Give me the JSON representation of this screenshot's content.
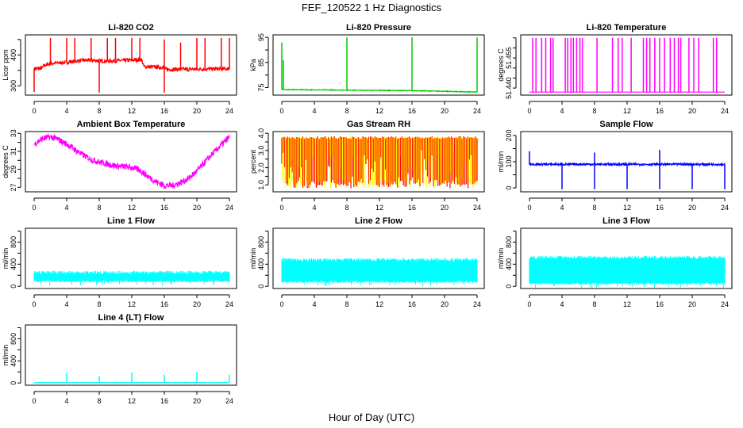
{
  "title": "FEF_120522  1 Hz Diagnostics",
  "xlabel": "Hour of Day (UTC)",
  "chart_data": [
    {
      "type": "line",
      "title": "Li-820 CO2",
      "ylabel": "Licor ppm",
      "color": "#ff0000",
      "xlim": [
        0,
        24
      ],
      "ylim": [
        270,
        465
      ],
      "yticks": [
        300,
        350,
        400,
        450
      ],
      "ytick_labels": [
        "300",
        "",
        "400",
        ""
      ],
      "baseline": [
        [
          0,
          355
        ],
        [
          1,
          357
        ],
        [
          1.2,
          366
        ],
        [
          2,
          372
        ],
        [
          4,
          376
        ],
        [
          6,
          383
        ],
        [
          9,
          380
        ],
        [
          12,
          383
        ],
        [
          13.2,
          385
        ],
        [
          13.5,
          362
        ],
        [
          15.9,
          360
        ],
        [
          16.1,
          353
        ],
        [
          24,
          355
        ]
      ],
      "noise": 6,
      "spikes": [
        [
          0,
          280
        ],
        [
          2,
          455
        ],
        [
          4,
          455
        ],
        [
          5,
          455
        ],
        [
          7,
          455
        ],
        [
          8,
          278
        ],
        [
          9,
          455
        ],
        [
          10,
          455
        ],
        [
          12,
          455
        ],
        [
          13,
          455
        ],
        [
          16,
          278
        ],
        [
          16,
          450
        ],
        [
          18,
          440
        ],
        [
          20,
          455
        ],
        [
          21,
          455
        ],
        [
          23,
          455
        ],
        [
          24,
          455
        ]
      ]
    },
    {
      "type": "line",
      "title": "Li-820 Pressure",
      "ylabel": "kPa",
      "color": "#00cc00",
      "xlim": [
        0,
        24
      ],
      "ylim": [
        72,
        96
      ],
      "yticks": [
        75,
        80,
        85,
        90,
        95
      ],
      "ytick_labels": [
        "75",
        "",
        "85",
        "",
        "95"
      ],
      "baseline": [
        [
          0,
          74.2
        ],
        [
          8,
          74
        ],
        [
          16,
          73.8
        ],
        [
          24,
          73.2
        ]
      ],
      "noise": 0.15,
      "spikes": [
        [
          0,
          93
        ],
        [
          0.2,
          86
        ],
        [
          8,
          95
        ],
        [
          16,
          95
        ],
        [
          24,
          95
        ]
      ]
    },
    {
      "type": "line",
      "title": "Li-820 Temperature",
      "ylabel": "degrees C",
      "color": "#ff00ff",
      "xlim": [
        0,
        24
      ],
      "ylim": [
        51.4365,
        51.4665
      ],
      "yticks": [
        51.44,
        51.445,
        51.45,
        51.455,
        51.46,
        51.465
      ],
      "ytick_labels": [
        "51.440",
        "",
        "",
        "51.455",
        "",
        ""
      ],
      "baseline": [
        [
          0,
          51.438
        ],
        [
          24,
          51.438
        ]
      ],
      "noise": 0,
      "spikes": [
        [
          0.4,
          51.465
        ],
        [
          0.8,
          51.465
        ],
        [
          1.5,
          51.465
        ],
        [
          2,
          51.465
        ],
        [
          2.6,
          51.465
        ],
        [
          2.9,
          51.465
        ],
        [
          4.4,
          51.465
        ],
        [
          4.7,
          51.465
        ],
        [
          5.1,
          51.465
        ],
        [
          5.4,
          51.465
        ],
        [
          5.8,
          51.465
        ],
        [
          6.2,
          51.465
        ],
        [
          6.5,
          51.465
        ],
        [
          8.3,
          51.465
        ],
        [
          10.2,
          51.465
        ],
        [
          10.9,
          51.465
        ],
        [
          11.4,
          51.465
        ],
        [
          12.5,
          51.465
        ],
        [
          14,
          51.465
        ],
        [
          14.4,
          51.465
        ],
        [
          14.8,
          51.465
        ],
        [
          15.4,
          51.465
        ],
        [
          16,
          51.465
        ],
        [
          16.6,
          51.465
        ],
        [
          17.3,
          51.465
        ],
        [
          17.8,
          51.465
        ],
        [
          18.3,
          51.465
        ],
        [
          18.6,
          51.465
        ],
        [
          19.6,
          51.465
        ],
        [
          20.2,
          51.465
        ],
        [
          20.8,
          51.465
        ],
        [
          22.6,
          51.465
        ],
        [
          23,
          51.465
        ]
      ]
    },
    {
      "type": "line",
      "title": "Ambient Box Temperature",
      "ylabel": "degrees C",
      "color": "#ff00ff",
      "xlim": [
        0,
        24
      ],
      "ylim": [
        26.5,
        33.2
      ],
      "yticks": [
        27,
        28,
        29,
        30,
        31,
        32,
        33
      ],
      "ytick_labels": [
        "27",
        "",
        "29",
        "",
        "31",
        "",
        "33"
      ],
      "baseline": [
        [
          0,
          31.8
        ],
        [
          1,
          32.4
        ],
        [
          2,
          32.6
        ],
        [
          3,
          32.3
        ],
        [
          4,
          31.8
        ],
        [
          5,
          31.2
        ],
        [
          6,
          30.6
        ],
        [
          7,
          30.1
        ],
        [
          8,
          29.8
        ],
        [
          9,
          29.6
        ],
        [
          10,
          29.4
        ],
        [
          11,
          29.3
        ],
        [
          12,
          29.2
        ],
        [
          13,
          28.9
        ],
        [
          14,
          28.2
        ],
        [
          15,
          27.6
        ],
        [
          16,
          27.2
        ],
        [
          17,
          27.2
        ],
        [
          18,
          27.5
        ],
        [
          19,
          28.0
        ],
        [
          20,
          28.8
        ],
        [
          21,
          29.8
        ],
        [
          22,
          30.8
        ],
        [
          23,
          31.7
        ],
        [
          24,
          32.6
        ]
      ],
      "noise": 0.35,
      "spikes": []
    },
    {
      "type": "area",
      "title": "Gas Stream RH",
      "ylabel": "percent",
      "colors": [
        "#ff0000",
        "#ffff00"
      ],
      "xlim": [
        0,
        24
      ],
      "ylim": [
        0.6,
        4.1
      ],
      "yticks": [
        1,
        1.5,
        2,
        2.5,
        3,
        3.5,
        4
      ],
      "ytick_labels": [
        "1.0",
        "",
        "2.0",
        "",
        "3.0",
        "",
        "4.0"
      ],
      "upper": 3.75,
      "lower": 1.0
    },
    {
      "type": "line",
      "title": "Sample Flow",
      "ylabel": "ml/min",
      "color": "#0000ff",
      "xlim": [
        0,
        24
      ],
      "ylim": [
        -15,
        215
      ],
      "yticks": [
        0,
        50,
        100,
        150,
        200
      ],
      "ytick_labels": [
        "0",
        "",
        "100",
        "",
        "200"
      ],
      "baseline": [
        [
          0,
          90
        ],
        [
          24,
          90
        ]
      ],
      "noise": 4,
      "spikes": [
        [
          0,
          140
        ],
        [
          4,
          -5
        ],
        [
          8,
          135
        ],
        [
          8,
          -5
        ],
        [
          12,
          -5
        ],
        [
          16,
          145
        ],
        [
          16,
          -5
        ],
        [
          20,
          -5
        ],
        [
          24,
          -5
        ]
      ]
    },
    {
      "type": "band",
      "title": "Line 1 Flow",
      "ylabel": "ml/min",
      "color": "#00ffff",
      "xlim": [
        0,
        24
      ],
      "ylim": [
        -40,
        1050
      ],
      "yticks": [
        0,
        200,
        400,
        600,
        800,
        1000
      ],
      "ytick_labels": [
        "0",
        "",
        "400",
        "",
        "800",
        ""
      ],
      "upper": 250,
      "lower": 90
    },
    {
      "type": "band",
      "title": "Line 2 Flow",
      "ylabel": "ml/min",
      "color": "#00ffff",
      "xlim": [
        0,
        24
      ],
      "ylim": [
        -40,
        1050
      ],
      "yticks": [
        0,
        200,
        400,
        600,
        800,
        1000
      ],
      "ytick_labels": [
        "0",
        "",
        "400",
        "",
        "800",
        ""
      ],
      "upper": 480,
      "lower": 80
    },
    {
      "type": "band",
      "title": "Line 3 Flow",
      "ylabel": "ml/min",
      "color": "#00ffff",
      "xlim": [
        0,
        24
      ],
      "ylim": [
        -40,
        1050
      ],
      "yticks": [
        0,
        200,
        400,
        600,
        800,
        1000
      ],
      "ytick_labels": [
        "0",
        "",
        "400",
        "",
        "800",
        ""
      ],
      "upper": 520,
      "lower": 50
    },
    {
      "type": "line",
      "title": "Line 4 (LT) Flow",
      "ylabel": "ml/min",
      "color": "#00ffff",
      "xlim": [
        0,
        24
      ],
      "ylim": [
        -40,
        1050
      ],
      "yticks": [
        0,
        200,
        400,
        600,
        800,
        1000
      ],
      "ytick_labels": [
        "0",
        "",
        "400",
        "",
        "800",
        ""
      ],
      "baseline": [
        [
          0,
          8
        ],
        [
          24,
          8
        ]
      ],
      "noise": 3,
      "spikes": [
        [
          4,
          180
        ],
        [
          8,
          130
        ],
        [
          12,
          190
        ],
        [
          16,
          150
        ],
        [
          20,
          200
        ],
        [
          24,
          150
        ]
      ]
    }
  ],
  "xticks": [
    0,
    4,
    8,
    12,
    16,
    20,
    24
  ]
}
